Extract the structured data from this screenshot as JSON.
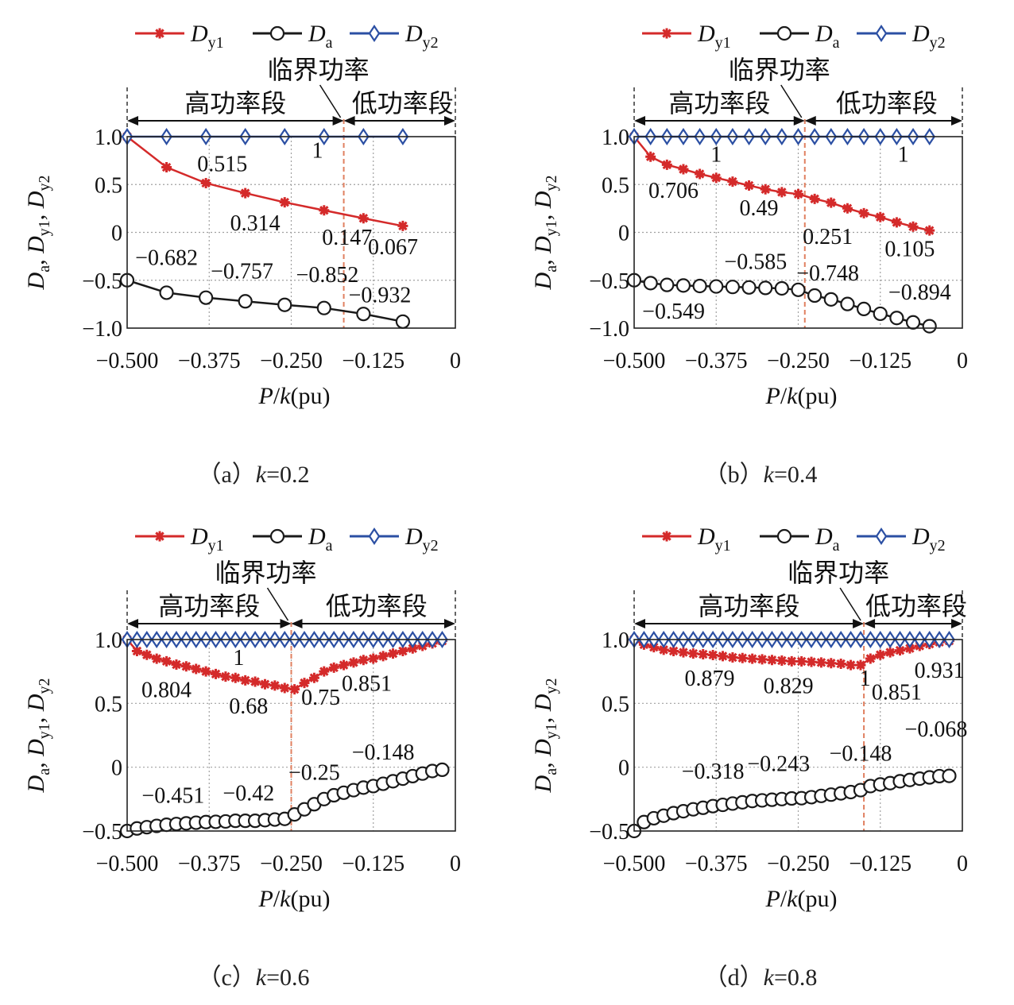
{
  "colors": {
    "dy1": "#d42a2a",
    "da": "#1a1a1a",
    "dy2": "#2b4fa3",
    "critical": "#e08060",
    "grid": "#a0a0a0"
  },
  "legend": [
    {
      "key": "dy1",
      "base": "D",
      "sub": "y1",
      "marker": "star"
    },
    {
      "key": "da",
      "base": "D",
      "sub": "a",
      "marker": "circle"
    },
    {
      "key": "dy2",
      "base": "D",
      "sub": "y2",
      "marker": "diamond"
    }
  ],
  "labels": {
    "critical": "临界功率",
    "high": "高功率段",
    "low": "低功率段",
    "xlabel": {
      "p": "P",
      "slash": "/",
      "k": "k",
      "unit": "(pu)"
    },
    "ylabel": {
      "parts": [
        {
          "b": "D",
          "s": "a"
        },
        {
          "b": "D",
          "s": "y1"
        },
        {
          "b": "D",
          "s": "y2"
        }
      ]
    }
  },
  "chart_data": [
    {
      "type": "line",
      "caption": {
        "prefix": "（a）",
        "k": "k",
        "rest": "=0.2"
      },
      "xlim": [
        -0.5,
        0
      ],
      "ylim": [
        -1.0,
        1.0
      ],
      "xticks": [
        "−0.500",
        "−0.375",
        "−0.250",
        "−0.125",
        "0"
      ],
      "yticks": [
        "1.0",
        "0.5",
        "0",
        "−0.5",
        "−1.0"
      ],
      "ytick_values": [
        1.0,
        0.5,
        0,
        -0.5,
        -1.0
      ],
      "critical_x": -0.17,
      "series": [
        {
          "key": "dy1",
          "x": [
            -0.5,
            -0.44,
            -0.38,
            -0.32,
            -0.26,
            -0.2,
            -0.14,
            -0.08
          ],
          "values": [
            1.0,
            0.68,
            0.515,
            0.41,
            0.314,
            0.23,
            0.147,
            0.067
          ]
        },
        {
          "key": "da",
          "x": [
            -0.5,
            -0.44,
            -0.38,
            -0.32,
            -0.26,
            -0.2,
            -0.14,
            -0.08
          ],
          "values": [
            -0.5,
            -0.63,
            -0.682,
            -0.72,
            -0.757,
            -0.79,
            -0.852,
            -0.932
          ]
        },
        {
          "key": "dy2",
          "x": [
            -0.5,
            -0.44,
            -0.38,
            -0.32,
            -0.26,
            -0.2,
            -0.14,
            -0.08
          ],
          "values": [
            1,
            1,
            1,
            1,
            1,
            1,
            1,
            1
          ]
        }
      ],
      "annotations": [
        {
          "text": "0.515",
          "dx": -0.355,
          "dy": 0.64
        },
        {
          "text": "1",
          "dx": -0.21,
          "dy": 0.78
        },
        {
          "text": "0.314",
          "dx": -0.305,
          "dy": 0.02
        },
        {
          "text": "0.147",
          "dx": -0.165,
          "dy": -0.13
        },
        {
          "text": "0.067",
          "dx": -0.095,
          "dy": -0.23
        },
        {
          "text": "−0.682",
          "dx": -0.44,
          "dy": -0.34
        },
        {
          "text": "−0.757",
          "dx": -0.325,
          "dy": -0.48
        },
        {
          "text": "−0.852",
          "dx": -0.195,
          "dy": -0.52
        },
        {
          "text": "−0.932",
          "dx": -0.115,
          "dy": -0.73
        }
      ]
    },
    {
      "type": "line",
      "caption": {
        "prefix": "（b）",
        "k": "k",
        "rest": "=0.4"
      },
      "xlim": [
        -0.5,
        0
      ],
      "ylim": [
        -1.0,
        1.0
      ],
      "xticks": [
        "−0.500",
        "−0.375",
        "−0.250",
        "−0.125",
        "0"
      ],
      "yticks": [
        "1.0",
        "0.5",
        "0",
        "−0.5",
        "−1.0"
      ],
      "ytick_values": [
        1.0,
        0.5,
        0,
        -0.5,
        -1.0
      ],
      "critical_x": -0.24,
      "series": [
        {
          "key": "dy1",
          "x": [
            -0.5,
            -0.475,
            -0.45,
            -0.425,
            -0.4,
            -0.375,
            -0.35,
            -0.325,
            -0.3,
            -0.275,
            -0.25,
            -0.225,
            -0.2,
            -0.175,
            -0.15,
            -0.125,
            -0.1,
            -0.075,
            -0.05
          ],
          "values": [
            1.0,
            0.79,
            0.706,
            0.66,
            0.61,
            0.57,
            0.53,
            0.49,
            0.45,
            0.42,
            0.4,
            0.35,
            0.31,
            0.251,
            0.2,
            0.16,
            0.105,
            0.06,
            0.02
          ]
        },
        {
          "key": "da",
          "x": [
            -0.5,
            -0.475,
            -0.45,
            -0.425,
            -0.4,
            -0.375,
            -0.35,
            -0.325,
            -0.3,
            -0.275,
            -0.25,
            -0.225,
            -0.2,
            -0.175,
            -0.15,
            -0.125,
            -0.1,
            -0.075,
            -0.05
          ],
          "values": [
            -0.5,
            -0.53,
            -0.549,
            -0.555,
            -0.56,
            -0.565,
            -0.57,
            -0.575,
            -0.58,
            -0.585,
            -0.6,
            -0.66,
            -0.7,
            -0.748,
            -0.8,
            -0.85,
            -0.894,
            -0.94,
            -0.98
          ]
        },
        {
          "key": "dy2",
          "x": [
            -0.5,
            -0.475,
            -0.45,
            -0.425,
            -0.4,
            -0.375,
            -0.35,
            -0.325,
            -0.3,
            -0.275,
            -0.25,
            -0.225,
            -0.2,
            -0.175,
            -0.15,
            -0.125,
            -0.1,
            -0.075,
            -0.05
          ],
          "values": [
            1,
            1,
            1,
            1,
            1,
            1,
            1,
            1,
            1,
            1,
            1,
            1,
            1,
            1,
            1,
            1,
            1,
            1,
            1
          ]
        }
      ],
      "annotations": [
        {
          "text": "1",
          "dx": -0.375,
          "dy": 0.74
        },
        {
          "text": "1",
          "dx": -0.09,
          "dy": 0.74
        },
        {
          "text": "0.706",
          "dx": -0.44,
          "dy": 0.36
        },
        {
          "text": "0.49",
          "dx": -0.31,
          "dy": 0.18
        },
        {
          "text": "0.251",
          "dx": -0.205,
          "dy": -0.12
        },
        {
          "text": "0.105",
          "dx": -0.08,
          "dy": -0.25
        },
        {
          "text": "−0.585",
          "dx": -0.315,
          "dy": -0.38
        },
        {
          "text": "−0.748",
          "dx": -0.205,
          "dy": -0.5
        },
        {
          "text": "−0.894",
          "dx": -0.065,
          "dy": -0.7
        },
        {
          "text": "−0.549",
          "dx": -0.44,
          "dy": -0.9
        }
      ]
    },
    {
      "type": "line",
      "caption": {
        "prefix": "（c）",
        "k": "k",
        "rest": "=0.6"
      },
      "xlim": [
        -0.5,
        0
      ],
      "ylim": [
        -0.5,
        1.0
      ],
      "xticks": [
        "−0.500",
        "−0.375",
        "−0.250",
        "−0.125",
        "0"
      ],
      "yticks": [
        "1.0",
        "0.5",
        "0",
        "−0.5"
      ],
      "ytick_values": [
        1.0,
        0.5,
        0,
        -0.5
      ],
      "critical_x": -0.25,
      "series": [
        {
          "key": "dy1",
          "x": [
            -0.5,
            -0.485,
            -0.47,
            -0.455,
            -0.44,
            -0.425,
            -0.41,
            -0.395,
            -0.38,
            -0.365,
            -0.35,
            -0.335,
            -0.32,
            -0.305,
            -0.29,
            -0.275,
            -0.26,
            -0.245,
            -0.23,
            -0.215,
            -0.2,
            -0.185,
            -0.17,
            -0.155,
            -0.14,
            -0.125,
            -0.11,
            -0.095,
            -0.08,
            -0.065,
            -0.05,
            -0.035,
            -0.02
          ],
          "values": [
            1.0,
            0.91,
            0.88,
            0.85,
            0.83,
            0.804,
            0.79,
            0.77,
            0.75,
            0.73,
            0.71,
            0.7,
            0.68,
            0.67,
            0.65,
            0.64,
            0.62,
            0.61,
            0.66,
            0.7,
            0.75,
            0.78,
            0.8,
            0.82,
            0.84,
            0.851,
            0.87,
            0.89,
            0.91,
            0.93,
            0.95,
            0.97,
            0.99
          ]
        },
        {
          "key": "da",
          "x": [
            -0.5,
            -0.485,
            -0.47,
            -0.455,
            -0.44,
            -0.425,
            -0.41,
            -0.395,
            -0.38,
            -0.365,
            -0.35,
            -0.335,
            -0.32,
            -0.305,
            -0.29,
            -0.275,
            -0.26,
            -0.245,
            -0.23,
            -0.215,
            -0.2,
            -0.185,
            -0.17,
            -0.155,
            -0.14,
            -0.125,
            -0.11,
            -0.095,
            -0.08,
            -0.065,
            -0.05,
            -0.035,
            -0.02
          ],
          "values": [
            -0.5,
            -0.48,
            -0.47,
            -0.46,
            -0.451,
            -0.445,
            -0.44,
            -0.435,
            -0.43,
            -0.428,
            -0.425,
            -0.42,
            -0.42,
            -0.42,
            -0.415,
            -0.41,
            -0.405,
            -0.37,
            -0.33,
            -0.29,
            -0.25,
            -0.22,
            -0.2,
            -0.18,
            -0.16,
            -0.148,
            -0.13,
            -0.11,
            -0.09,
            -0.07,
            -0.05,
            -0.03,
            -0.02
          ]
        },
        {
          "key": "dy2",
          "x": [
            -0.5,
            -0.485,
            -0.47,
            -0.455,
            -0.44,
            -0.425,
            -0.41,
            -0.395,
            -0.38,
            -0.365,
            -0.35,
            -0.335,
            -0.32,
            -0.305,
            -0.29,
            -0.275,
            -0.26,
            -0.245,
            -0.23,
            -0.215,
            -0.2,
            -0.185,
            -0.17,
            -0.155,
            -0.14,
            -0.125,
            -0.11,
            -0.095,
            -0.08,
            -0.065,
            -0.05,
            -0.035,
            -0.02
          ],
          "values": [
            1,
            1,
            1,
            1,
            1,
            1,
            1,
            1,
            1,
            1,
            1,
            1,
            1,
            1,
            1,
            1,
            1,
            1,
            1,
            1,
            1,
            1,
            1,
            1,
            1,
            1,
            1,
            1,
            1,
            1,
            1,
            1,
            1
          ]
        }
      ],
      "annotations": [
        {
          "text": "1",
          "dx": -0.33,
          "dy": 0.8
        },
        {
          "text": "0.804",
          "dx": -0.44,
          "dy": 0.55
        },
        {
          "text": "0.68",
          "dx": -0.315,
          "dy": 0.42
        },
        {
          "text": "0.75",
          "dx": -0.205,
          "dy": 0.49
        },
        {
          "text": "0.851",
          "dx": -0.135,
          "dy": 0.6
        },
        {
          "text": "−0.25",
          "dx": -0.215,
          "dy": -0.1
        },
        {
          "text": "−0.148",
          "dx": -0.11,
          "dy": 0.06
        },
        {
          "text": "−0.451",
          "dx": -0.43,
          "dy": -0.28
        },
        {
          "text": "−0.42",
          "dx": -0.315,
          "dy": -0.26
        }
      ]
    },
    {
      "type": "line",
      "caption": {
        "prefix": "（d）",
        "k": "k",
        "rest": "=0.8"
      },
      "xlim": [
        -0.5,
        0
      ],
      "ylim": [
        -0.5,
        1.0
      ],
      "xticks": [
        "−0.500",
        "−0.375",
        "−0.250",
        "−0.125",
        "0"
      ],
      "yticks": [
        "1.0",
        "0.5",
        "0",
        "−0.5"
      ],
      "ytick_values": [
        1.0,
        0.5,
        0,
        -0.5
      ],
      "critical_x": -0.15,
      "series": [
        {
          "key": "dy1",
          "x": [
            -0.5,
            -0.485,
            -0.47,
            -0.455,
            -0.44,
            -0.425,
            -0.41,
            -0.395,
            -0.38,
            -0.365,
            -0.35,
            -0.335,
            -0.32,
            -0.305,
            -0.29,
            -0.275,
            -0.26,
            -0.245,
            -0.23,
            -0.215,
            -0.2,
            -0.185,
            -0.17,
            -0.155,
            -0.14,
            -0.125,
            -0.11,
            -0.095,
            -0.08,
            -0.065,
            -0.05,
            -0.035,
            -0.02
          ],
          "values": [
            1.0,
            0.96,
            0.94,
            0.92,
            0.91,
            0.9,
            0.89,
            0.885,
            0.879,
            0.87,
            0.86,
            0.855,
            0.85,
            0.845,
            0.84,
            0.835,
            0.83,
            0.829,
            0.825,
            0.82,
            0.815,
            0.81,
            0.8,
            0.8,
            0.851,
            0.88,
            0.9,
            0.915,
            0.931,
            0.95,
            0.965,
            0.98,
            0.99
          ]
        },
        {
          "key": "da",
          "x": [
            -0.5,
            -0.485,
            -0.47,
            -0.455,
            -0.44,
            -0.425,
            -0.41,
            -0.395,
            -0.38,
            -0.365,
            -0.35,
            -0.335,
            -0.32,
            -0.305,
            -0.29,
            -0.275,
            -0.26,
            -0.245,
            -0.23,
            -0.215,
            -0.2,
            -0.185,
            -0.17,
            -0.155,
            -0.14,
            -0.125,
            -0.11,
            -0.095,
            -0.08,
            -0.065,
            -0.05,
            -0.035,
            -0.02
          ],
          "values": [
            -0.5,
            -0.43,
            -0.4,
            -0.38,
            -0.36,
            -0.345,
            -0.33,
            -0.318,
            -0.305,
            -0.295,
            -0.285,
            -0.275,
            -0.265,
            -0.26,
            -0.255,
            -0.25,
            -0.245,
            -0.243,
            -0.235,
            -0.225,
            -0.215,
            -0.205,
            -0.195,
            -0.18,
            -0.148,
            -0.135,
            -0.125,
            -0.11,
            -0.1,
            -0.09,
            -0.08,
            -0.07,
            -0.068
          ]
        },
        {
          "key": "dy2",
          "x": [
            -0.5,
            -0.485,
            -0.47,
            -0.455,
            -0.44,
            -0.425,
            -0.41,
            -0.395,
            -0.38,
            -0.365,
            -0.35,
            -0.335,
            -0.32,
            -0.305,
            -0.29,
            -0.275,
            -0.26,
            -0.245,
            -0.23,
            -0.215,
            -0.2,
            -0.185,
            -0.17,
            -0.155,
            -0.14,
            -0.125,
            -0.11,
            -0.095,
            -0.08,
            -0.065,
            -0.05,
            -0.035,
            -0.02
          ],
          "values": [
            1,
            1,
            1,
            1,
            1,
            1,
            1,
            1,
            1,
            1,
            1,
            1,
            1,
            1,
            1,
            1,
            1,
            1,
            1,
            1,
            1,
            1,
            1,
            1,
            1,
            1,
            1,
            1,
            1,
            1,
            1,
            1,
            1
          ]
        }
      ],
      "annotations": [
        {
          "text": "0.879",
          "dx": -0.385,
          "dy": 0.64
        },
        {
          "text": "0.829",
          "dx": -0.265,
          "dy": 0.58
        },
        {
          "text": "1",
          "dx": -0.148,
          "dy": 0.64
        },
        {
          "text": "0.851",
          "dx": -0.1,
          "dy": 0.53
        },
        {
          "text": "0.931",
          "dx": -0.035,
          "dy": 0.7
        },
        {
          "text": "−0.068",
          "dx": -0.04,
          "dy": 0.24
        },
        {
          "text": "−0.148",
          "dx": -0.155,
          "dy": 0.05
        },
        {
          "text": "−0.318",
          "dx": -0.38,
          "dy": -0.09
        },
        {
          "text": "−0.243",
          "dx": -0.28,
          "dy": -0.03
        }
      ]
    }
  ]
}
